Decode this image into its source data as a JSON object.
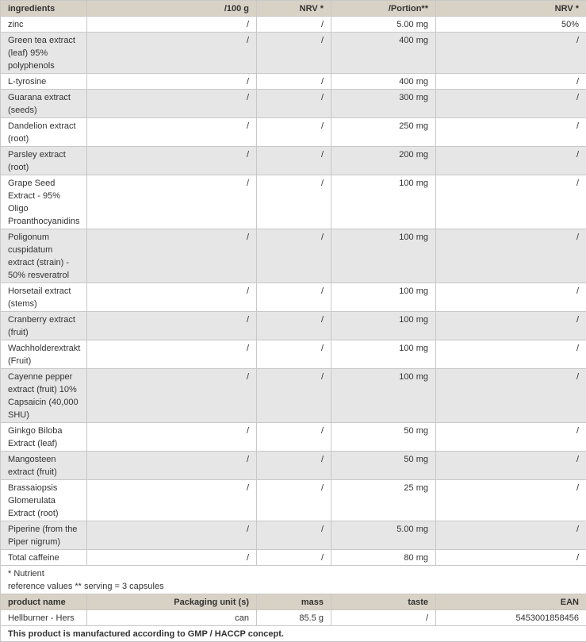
{
  "nutrition": {
    "headers": [
      "ingredients",
      "/100 g",
      "NRV *",
      "/Portion**",
      "NRV *"
    ],
    "rows": [
      [
        "zinc",
        "/",
        "/",
        "5.00 mg",
        "50%"
      ],
      [
        "Green tea extract (leaf) 95% polyphenols",
        "/",
        "/",
        "400 mg",
        "/"
      ],
      [
        "L-tyrosine",
        "/",
        "/",
        "400 mg",
        "/"
      ],
      [
        "Guarana extract (seeds)",
        "/",
        "/",
        "300 mg",
        "/"
      ],
      [
        "Dandelion extract (root)",
        "/",
        "/",
        "250 mg",
        "/"
      ],
      [
        "Parsley extract (root)",
        "/",
        "/",
        "200 mg",
        "/"
      ],
      [
        "Grape Seed Extract - 95% Oligo Proanthocyanidins",
        "/",
        "/",
        "100 mg",
        "/"
      ],
      [
        "Poligonum cuspidatum extract (strain) - 50% resveratrol",
        "/",
        "/",
        "100 mg",
        "/"
      ],
      [
        "Horsetail extract (stems)",
        "/",
        "/",
        "100 mg",
        "/"
      ],
      [
        "Cranberry extract (fruit)",
        "/",
        "/",
        "100 mg",
        "/"
      ],
      [
        "Wachholderextrakt (Fruit)",
        "/",
        "/",
        "100 mg",
        "/"
      ],
      [
        "Cayenne pepper extract (fruit) 10% Capsaicin (40,000 SHU)",
        "/",
        "/",
        "100 mg",
        "/"
      ],
      [
        "Ginkgo Biloba Extract (leaf)",
        "/",
        "/",
        "50 mg",
        "/"
      ],
      [
        "Mangosteen extract (fruit)",
        "/",
        "/",
        "50 mg",
        "/"
      ],
      [
        "Brassaiopsis Glomerulata Extract (root)",
        "/",
        "/",
        "25 mg",
        "/"
      ],
      [
        "Piperine (from the Piper nigrum)",
        "/",
        "/",
        "5.00 mg",
        "/"
      ],
      [
        "Total caffeine",
        "/",
        "/",
        "80 mg",
        "/"
      ]
    ],
    "note_line1": "* Nutrient",
    "note_line2": "reference values ** serving = 3 capsules"
  },
  "product": {
    "headers": [
      "product name",
      "Packaging unit (s)",
      "mass",
      "taste",
      "EAN"
    ],
    "row": [
      "Hellburner - Hers",
      "can",
      "85.5 g",
      "/",
      "5453001858456"
    ],
    "footer": "This product is manufactured according to GMP / HACCP concept."
  }
}
